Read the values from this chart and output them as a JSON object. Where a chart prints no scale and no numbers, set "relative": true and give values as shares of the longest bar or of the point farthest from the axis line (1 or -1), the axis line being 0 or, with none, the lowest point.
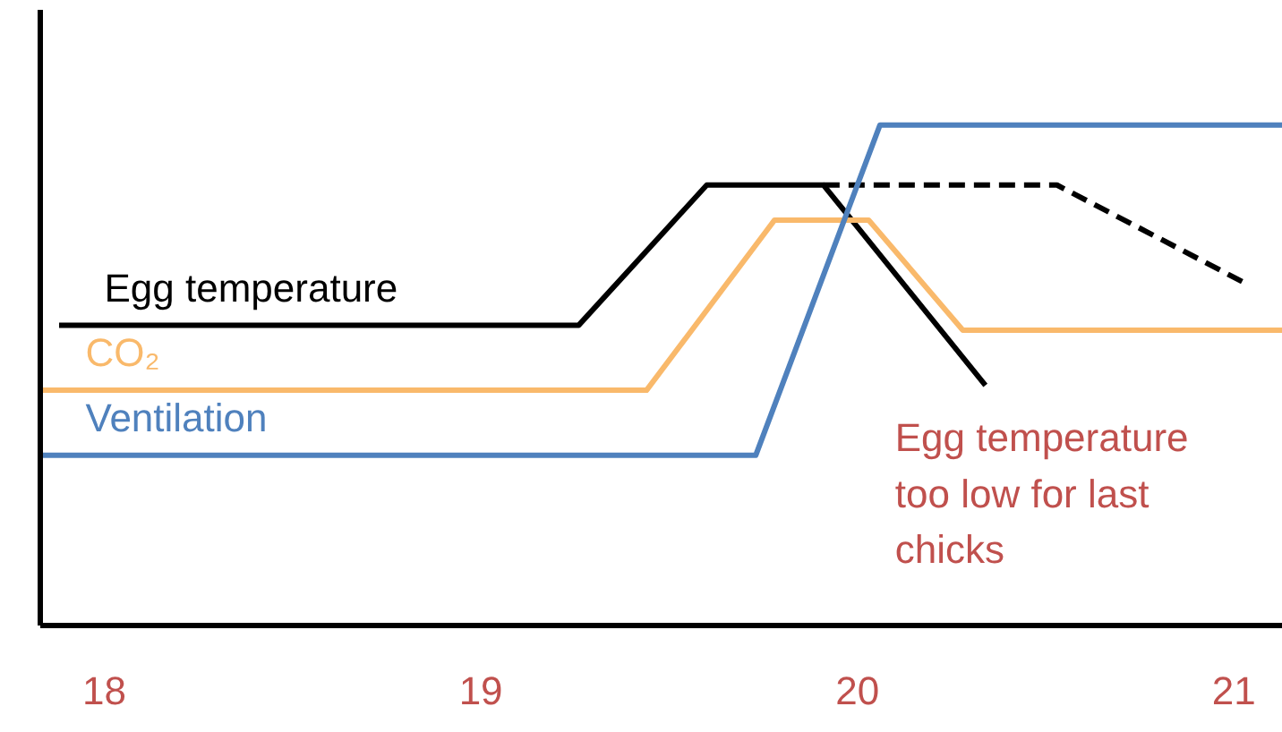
{
  "chart_data": {
    "type": "line",
    "relative": true,
    "xlim": [
      17.83,
      21.13
    ],
    "xticks": [
      18,
      19,
      20,
      21
    ],
    "grid": false,
    "marker": "none",
    "line_style": "solid",
    "series": [
      {
        "name": "Egg temperature",
        "color": "#000000",
        "x": [
          17.88,
          19.26,
          19.6,
          19.91,
          20.34
        ],
        "values": [
          0.6,
          0.6,
          0.88,
          0.88,
          0.48
        ]
      },
      {
        "color": "#000000",
        "line_style": "dashed",
        "x": [
          19.91,
          20.53,
          21.04
        ],
        "values": [
          0.88,
          0.88,
          0.68
        ]
      },
      {
        "name": "CO₂",
        "color": "#f9b96b",
        "x": [
          17.83,
          19.44,
          19.78,
          20.03,
          20.28,
          21.13
        ],
        "values": [
          0.47,
          0.47,
          0.81,
          0.81,
          0.59,
          0.59
        ]
      },
      {
        "name": "Ventilation",
        "color": "#4f81bd",
        "x": [
          17.83,
          19.73,
          20.06,
          21.13
        ],
        "values": [
          0.34,
          0.34,
          1,
          1
        ]
      }
    ],
    "annotations": [
      "Egg temperature too low for last chicks"
    ]
  }
}
